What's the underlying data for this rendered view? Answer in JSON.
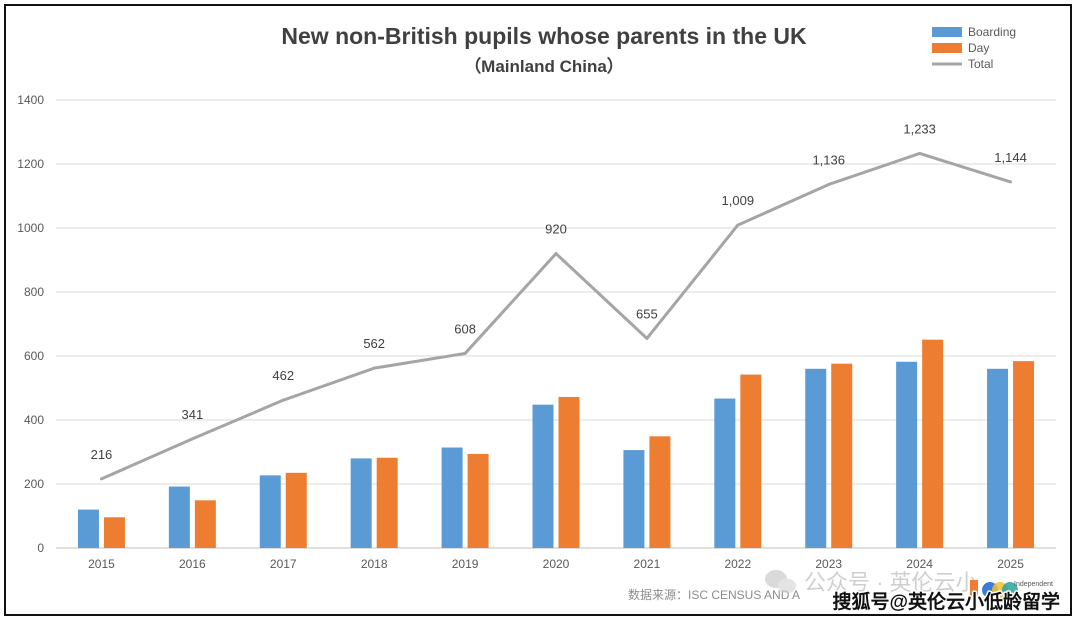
{
  "chart_data": {
    "type": "bar",
    "title": "New non-British pupils whose parents  in the UK",
    "subtitle": "（Mainland China）",
    "categories": [
      "2015",
      "2016",
      "2017",
      "2018",
      "2019",
      "2020",
      "2021",
      "2022",
      "2023",
      "2024",
      "2025"
    ],
    "series": [
      {
        "name": "Boarding",
        "type": "bar",
        "color": "#5b9bd5",
        "values": [
          120,
          192,
          227,
          280,
          314,
          448,
          306,
          467,
          560,
          582,
          560
        ]
      },
      {
        "name": "Day",
        "type": "bar",
        "color": "#ed7d31",
        "values": [
          96,
          149,
          235,
          282,
          294,
          472,
          349,
          542,
          576,
          651,
          584
        ]
      },
      {
        "name": "Total",
        "type": "line",
        "color": "#a5a5a5",
        "values": [
          216,
          341,
          462,
          562,
          608,
          920,
          655,
          1009,
          1136,
          1233,
          1144
        ],
        "labels": [
          "216",
          "341",
          "462",
          "562",
          "608",
          "920",
          "655",
          "1,009",
          "1,136",
          "1,233",
          "1,144"
        ]
      }
    ],
    "ylim": [
      0,
      1400
    ],
    "yticks": [
      0,
      200,
      400,
      600,
      800,
      1000,
      1200,
      1400
    ],
    "ytick_labels": [
      "0",
      "200",
      "400",
      "600",
      "800",
      "1000",
      "1200",
      "1400"
    ],
    "grid": true,
    "legend_position": "top-right"
  },
  "footer": {
    "source": "数据来源：ISC CENSUS AND A",
    "watermark": "公众号 · 英伦云小",
    "credit": "搜狐号@英伦云小低龄留学",
    "logo_text": "Independent"
  },
  "colors": {
    "grid": "#d9d9d9",
    "axis_text": "#595959",
    "title": "#404040"
  }
}
